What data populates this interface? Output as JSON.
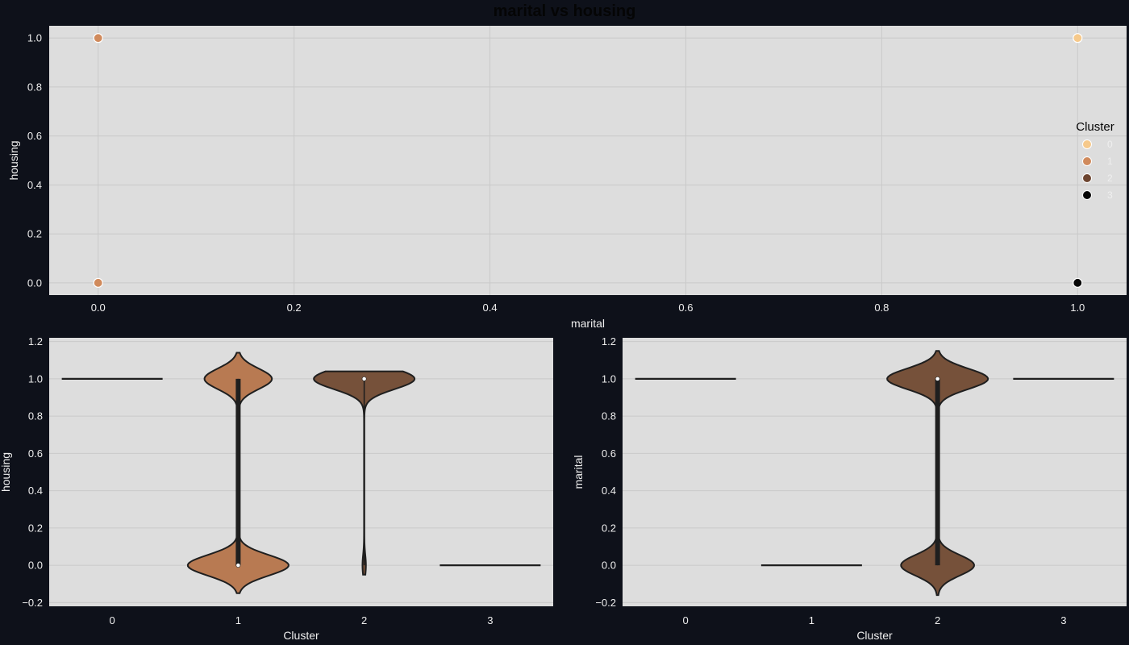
{
  "figure": {
    "title": "marital vs housing"
  },
  "legend": {
    "title": "Cluster",
    "items": [
      {
        "label": "0",
        "color": "#f6c98b"
      },
      {
        "label": "1",
        "color": "#d08a5c"
      },
      {
        "label": "2",
        "color": "#6d4530"
      },
      {
        "label": "3",
        "color": "#050505"
      }
    ]
  },
  "chart_data": [
    {
      "type": "scatter",
      "title": "marital vs housing",
      "xlabel": "marital",
      "ylabel": "housing",
      "xlim": [
        -0.05,
        1.05
      ],
      "ylim": [
        -0.05,
        1.05
      ],
      "xticks": [
        "0.0",
        "0.2",
        "0.4",
        "0.6",
        "0.8",
        "1.0"
      ],
      "yticks": [
        "0.0",
        "0.2",
        "0.4",
        "0.6",
        "0.8",
        "1.0"
      ],
      "grid": true,
      "legend_position": "right",
      "points": [
        {
          "x": 0,
          "y": 1,
          "cluster": "1"
        },
        {
          "x": 0,
          "y": 0,
          "cluster": "1"
        },
        {
          "x": 1,
          "y": 1,
          "cluster": "0"
        },
        {
          "x": 1,
          "y": 0,
          "cluster": "3"
        }
      ]
    },
    {
      "type": "violin",
      "xlabel": "Cluster",
      "ylabel": "housing",
      "categories": [
        "0",
        "1",
        "2",
        "3"
      ],
      "ylim": [
        -0.22,
        1.22
      ],
      "yticks": [
        "−0.2",
        "0.0",
        "0.2",
        "0.4",
        "0.6",
        "0.8",
        "1.0",
        "1.2"
      ],
      "grid": true,
      "violins": [
        {
          "category": "0",
          "kind": "flat",
          "value": 1.0
        },
        {
          "category": "1",
          "kind": "bimodal",
          "color": "#b87a52",
          "median": 0.0,
          "q1": 0.0,
          "q3": 1.0,
          "min": 0.0,
          "max": 1.0,
          "y_low": -0.15,
          "y_high": 1.14,
          "share_at_0": 0.6,
          "share_at_1": 0.4
        },
        {
          "category": "2",
          "kind": "bimodal",
          "color": "#76513a",
          "median": 1.0,
          "q1": 1.0,
          "q3": 1.0,
          "min": 0.0,
          "max": 1.0,
          "y_low": -0.05,
          "y_high": 1.04,
          "share_at_0": 0.03,
          "share_at_1": 0.97
        },
        {
          "category": "3",
          "kind": "flat",
          "value": 0.0
        }
      ]
    },
    {
      "type": "violin",
      "xlabel": "Cluster",
      "ylabel": "marital",
      "categories": [
        "0",
        "1",
        "2",
        "3"
      ],
      "ylim": [
        -0.22,
        1.22
      ],
      "yticks": [
        "−0.2",
        "0.0",
        "0.2",
        "0.4",
        "0.6",
        "0.8",
        "1.0",
        "1.2"
      ],
      "grid": true,
      "violins": [
        {
          "category": "0",
          "kind": "flat",
          "value": 1.0
        },
        {
          "category": "1",
          "kind": "flat",
          "value": 0.0
        },
        {
          "category": "2",
          "kind": "bimodal",
          "color": "#76513a",
          "median": 1.0,
          "q1": 0.0,
          "q3": 1.0,
          "min": 0.0,
          "max": 1.0,
          "y_low": -0.16,
          "y_high": 1.15,
          "share_at_0": 0.42,
          "share_at_1": 0.58
        },
        {
          "category": "3",
          "kind": "flat",
          "value": 1.0
        }
      ]
    }
  ]
}
